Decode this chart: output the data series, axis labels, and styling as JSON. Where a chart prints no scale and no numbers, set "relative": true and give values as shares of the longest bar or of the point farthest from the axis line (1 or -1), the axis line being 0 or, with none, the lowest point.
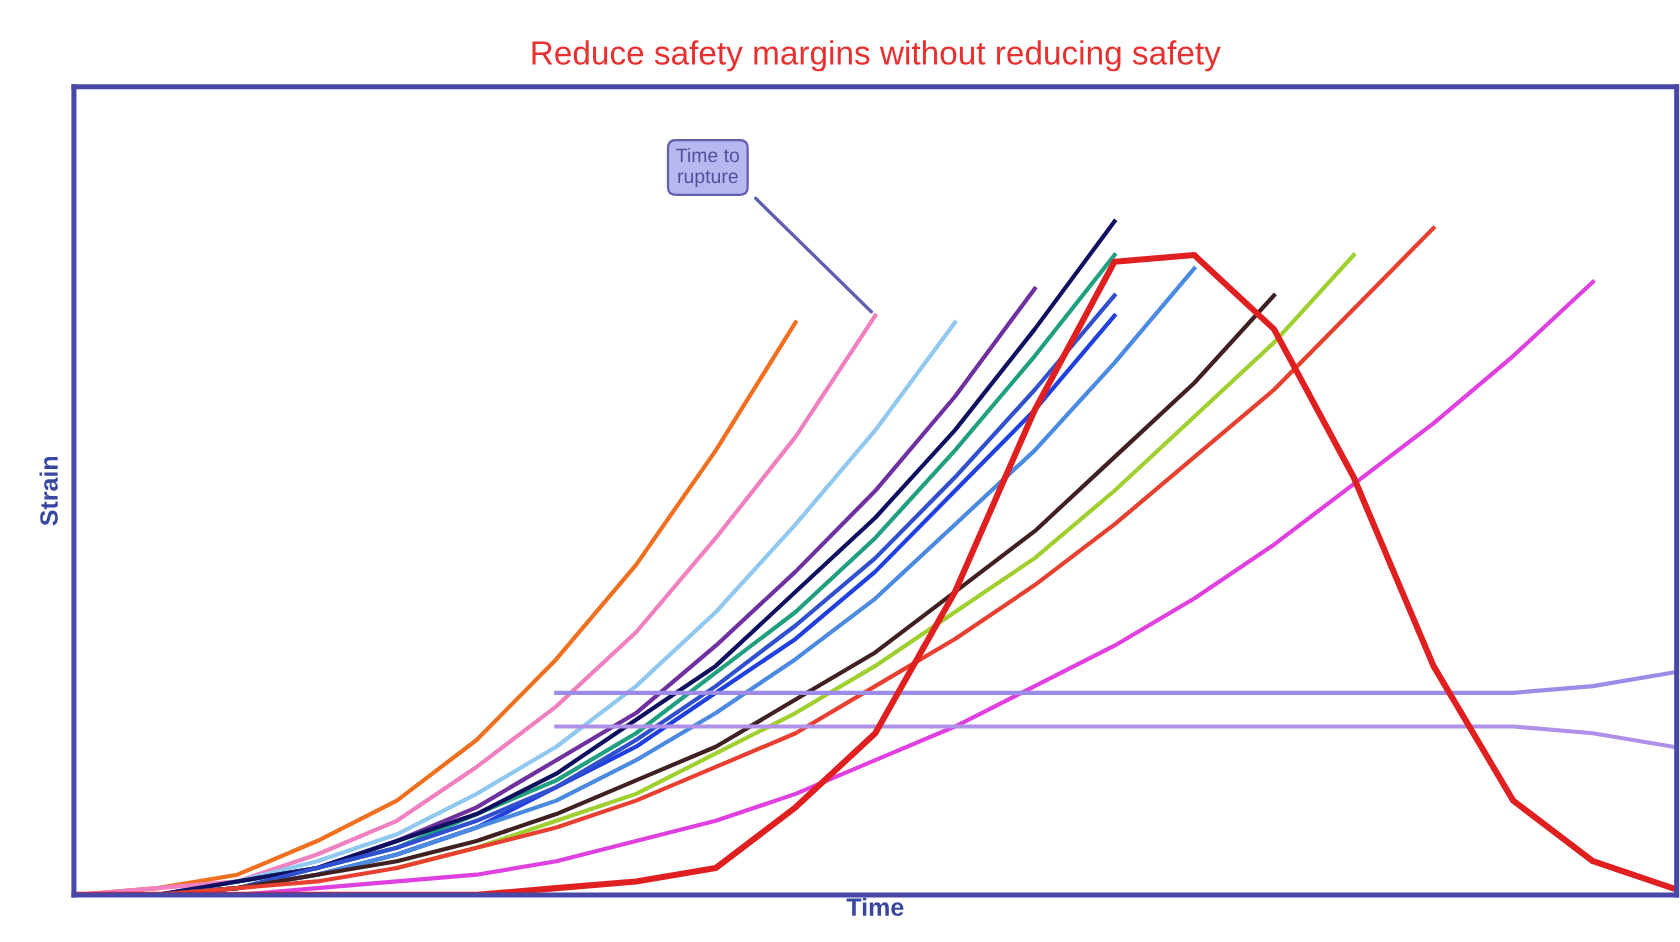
{
  "chart_data": {
    "type": "line",
    "relative": true,
    "title": "Reduce safety margins without reducing safety",
    "xlabel": "Time",
    "ylabel": "Strain",
    "marker": "none",
    "line_style": "solid",
    "categories": [
      null,
      null,
      null,
      null,
      null,
      null,
      null,
      null,
      null,
      null,
      null,
      null,
      null,
      null,
      null,
      null,
      null,
      null,
      null,
      null,
      null
    ],
    "annotations": [
      "Time to\nrupture"
    ],
    "series": [
      {
        "color": "#f07020",
        "values": [
          0,
          0.01,
          0.03,
          0.08,
          0.14,
          0.23,
          0.35,
          0.49,
          0.66,
          0.85,
          null,
          null,
          null,
          null,
          null,
          null,
          null,
          null,
          null,
          null,
          null
        ]
      },
      {
        "color": "#f080c0",
        "values": [
          0,
          0.01,
          0.02,
          0.06,
          0.11,
          0.19,
          0.28,
          0.39,
          0.53,
          0.68,
          0.86,
          null,
          null,
          null,
          null,
          null,
          null,
          null,
          null,
          null,
          null
        ]
      },
      {
        "color": "#90c8f0",
        "values": [
          0,
          0,
          0.02,
          0.05,
          0.09,
          0.15,
          0.22,
          0.31,
          0.42,
          0.55,
          0.69,
          0.85,
          null,
          null,
          null,
          null,
          null,
          null,
          null,
          null,
          null
        ]
      },
      {
        "color": "#7030a0",
        "values": [
          0,
          0,
          0.02,
          0.04,
          0.08,
          0.13,
          0.2,
          0.27,
          0.37,
          0.48,
          0.6,
          0.74,
          0.9,
          null,
          null,
          null,
          null,
          null,
          null,
          null,
          null
        ]
      },
      {
        "color": "#20a080",
        "values": [
          null,
          null,
          0.02,
          0.04,
          0.07,
          0.12,
          0.17,
          0.24,
          0.33,
          0.42,
          0.53,
          0.66,
          0.8,
          0.95,
          null,
          null,
          null,
          null,
          null,
          null,
          null
        ]
      },
      {
        "color": "#101060",
        "values": [
          0,
          0,
          0.02,
          0.04,
          0.08,
          0.12,
          0.18,
          0.26,
          0.34,
          0.45,
          0.56,
          0.69,
          0.84,
          1,
          null,
          null,
          null,
          null,
          null,
          null,
          null
        ]
      },
      {
        "color": "#2040e0",
        "values": [
          0,
          0,
          0.01,
          0.03,
          0.06,
          0.1,
          0.16,
          0.22,
          0.3,
          0.38,
          0.48,
          0.6,
          0.72,
          0.86,
          null,
          null,
          null,
          null,
          null,
          null,
          null
        ]
      },
      {
        "color": "#3050d0",
        "values": [
          0,
          0,
          0.01,
          0.04,
          0.07,
          0.11,
          0.16,
          0.23,
          0.31,
          0.4,
          0.5,
          0.62,
          0.75,
          0.89,
          null,
          null,
          null,
          null,
          null,
          null,
          null
        ]
      },
      {
        "color": "#4a8ae0",
        "values": [
          0,
          0,
          0.01,
          0.03,
          0.06,
          0.1,
          0.14,
          0.2,
          0.27,
          0.35,
          0.44,
          0.55,
          0.66,
          0.79,
          0.93,
          null,
          null,
          null,
          null,
          null,
          null
        ]
      },
      {
        "color": "#402020",
        "values": [
          0,
          0,
          0.01,
          0.03,
          0.05,
          0.08,
          0.12,
          0.17,
          0.22,
          0.29,
          0.36,
          0.45,
          0.54,
          0.65,
          0.76,
          0.89,
          null,
          null,
          null,
          null,
          null
        ]
      },
      {
        "color": "#a0d030",
        "values": [
          null,
          null,
          null,
          null,
          0.04,
          0.07,
          0.11,
          0.15,
          0.21,
          0.27,
          0.34,
          0.42,
          0.5,
          0.6,
          0.71,
          0.82,
          0.95,
          null,
          null,
          null,
          null
        ]
      },
      {
        "color": "#e84030",
        "values": [
          0,
          0,
          0.01,
          0.02,
          0.04,
          0.07,
          0.1,
          0.14,
          0.19,
          0.24,
          0.31,
          0.38,
          0.46,
          0.55,
          0.65,
          0.75,
          0.87,
          0.99,
          null,
          null,
          null
        ]
      },
      {
        "color": "#e040e0",
        "values": [
          0,
          0,
          0,
          0.01,
          0.02,
          0.03,
          0.05,
          0.08,
          0.11,
          0.15,
          0.2,
          0.25,
          0.31,
          0.37,
          0.44,
          0.52,
          0.61,
          0.7,
          0.8,
          0.91,
          null
        ]
      },
      {
        "color": "#9c8ce8",
        "values": [
          null,
          null,
          null,
          null,
          null,
          null,
          0.3,
          0.3,
          0.3,
          0.3,
          0.3,
          0.3,
          0.3,
          0.3,
          0.3,
          0.3,
          0.3,
          0.3,
          0.3,
          0.31,
          0.33
        ]
      },
      {
        "color": "#b090e8",
        "values": [
          null,
          null,
          null,
          null,
          null,
          null,
          0.25,
          0.25,
          0.25,
          0.25,
          0.25,
          0.25,
          0.25,
          0.25,
          0.25,
          0.25,
          0.25,
          0.25,
          0.25,
          0.24,
          0.22
        ]
      },
      {
        "color": "#e02020",
        "values": [
          0,
          0,
          0,
          0,
          0,
          0,
          0.01,
          0.02,
          0.04,
          0.13,
          0.24,
          0.45,
          0.72,
          0.94,
          0.95,
          0.84,
          0.62,
          0.34,
          0.14,
          0.05,
          0.01
        ]
      }
    ]
  }
}
